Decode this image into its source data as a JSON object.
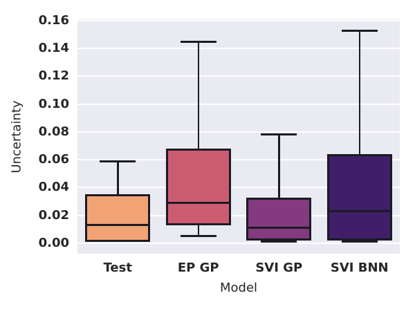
{
  "figure": {
    "background": "#ffffff",
    "plot_background": "#eaeaf2",
    "grid_color": "#ffffff",
    "text_color": "#262626",
    "line_color": "#1b1b24"
  },
  "chart_data": {
    "type": "boxplot",
    "title": "",
    "xlabel": "Model",
    "ylabel": "Uncertainty",
    "categories": [
      "Test",
      "EP GP",
      "SVI GP",
      "SVI BNN"
    ],
    "ylim": [
      -0.0075,
      0.161
    ],
    "grid": true,
    "legend": "none",
    "yticks": [
      0.0,
      0.02,
      0.04,
      0.06,
      0.08,
      0.1,
      0.12,
      0.14,
      0.16
    ],
    "ytick_labels": [
      "0.00",
      "0.02",
      "0.04",
      "0.06",
      "0.08",
      "0.10",
      "0.12",
      "0.14",
      "0.16"
    ],
    "series": [
      {
        "name": "Test",
        "min": 0.001,
        "q1": 0.001,
        "median": 0.013,
        "q3": 0.035,
        "max": 0.059,
        "color": "#f2a375"
      },
      {
        "name": "EP GP",
        "min": 0.005,
        "q1": 0.013,
        "median": 0.029,
        "q3": 0.068,
        "max": 0.145,
        "color": "#cd5c72"
      },
      {
        "name": "SVI GP",
        "min": 0.001,
        "q1": 0.002,
        "median": 0.011,
        "q3": 0.033,
        "max": 0.078,
        "color": "#833a7e"
      },
      {
        "name": "SVI BNN",
        "min": 0.001,
        "q1": 0.002,
        "median": 0.023,
        "q3": 0.064,
        "max": 0.153,
        "color": "#3f2068"
      }
    ]
  }
}
